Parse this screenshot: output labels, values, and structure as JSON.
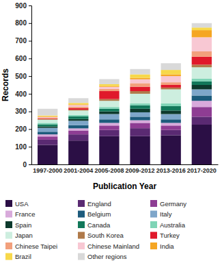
{
  "chart_data": {
    "type": "bar",
    "stacked": true,
    "legend": "bottom",
    "x_label": "Publication Year",
    "y_label": "Records",
    "categories": [
      "1997-2000",
      "2001-2004",
      "2005-2008",
      "2009-2012",
      "2013-2016",
      "2017-2020"
    ],
    "ylim": [
      0,
      900
    ],
    "yticks": [
      0,
      100,
      200,
      300,
      400,
      500,
      600,
      700,
      800,
      900
    ],
    "series": [
      {
        "name": "USA",
        "color": "#2b0f45",
        "values": [
          110,
          135,
          160,
          160,
          165,
          225
        ]
      },
      {
        "name": "England",
        "color": "#5a2a72",
        "values": [
          30,
          35,
          35,
          45,
          30,
          45
        ]
      },
      {
        "name": "Germany",
        "color": "#8e3d93",
        "values": [
          18,
          22,
          25,
          30,
          25,
          55
        ]
      },
      {
        "name": "France",
        "color": "#d8aadb",
        "values": [
          12,
          12,
          15,
          15,
          15,
          35
        ]
      },
      {
        "name": "Belgium",
        "color": "#1d5b7c",
        "values": [
          15,
          18,
          20,
          20,
          20,
          30
        ]
      },
      {
        "name": "Italy",
        "color": "#7ea6c9",
        "values": [
          22,
          25,
          30,
          25,
          30,
          35
        ]
      },
      {
        "name": "Spain",
        "color": "#0d3a2d",
        "values": [
          8,
          10,
          15,
          20,
          20,
          25
        ]
      },
      {
        "name": "Canada",
        "color": "#12785a",
        "values": [
          12,
          15,
          15,
          20,
          25,
          20
        ]
      },
      {
        "name": "Australia",
        "color": "#7fd4b6",
        "values": [
          8,
          8,
          10,
          10,
          15,
          15
        ]
      },
      {
        "name": "Japan",
        "color": "#cdeedf",
        "values": [
          18,
          25,
          35,
          55,
          80,
          65
        ]
      },
      {
        "name": "South Korea",
        "color": "#b07a4a",
        "values": [
          3,
          5,
          10,
          15,
          10,
          15
        ]
      },
      {
        "name": "Turkey",
        "color": "#e0192b",
        "values": [
          3,
          8,
          45,
          25,
          15,
          45
        ]
      },
      {
        "name": "Chinese Taipei",
        "color": "#f2a07c",
        "values": [
          5,
          8,
          12,
          20,
          15,
          30
        ]
      },
      {
        "name": "Chinese Mainland",
        "color": "#f8c8d3",
        "values": [
          5,
          10,
          12,
          22,
          35,
          80
        ]
      },
      {
        "name": "India",
        "color": "#f5a623",
        "values": [
          3,
          4,
          5,
          8,
          10,
          40
        ]
      },
      {
        "name": "Brazil",
        "color": "#f7d84a",
        "values": [
          5,
          8,
          10,
          20,
          25,
          15
        ]
      },
      {
        "name": "Other regions",
        "color": "#d9d9d9",
        "values": [
          38,
          27,
          29,
          30,
          38,
          25
        ]
      }
    ]
  }
}
